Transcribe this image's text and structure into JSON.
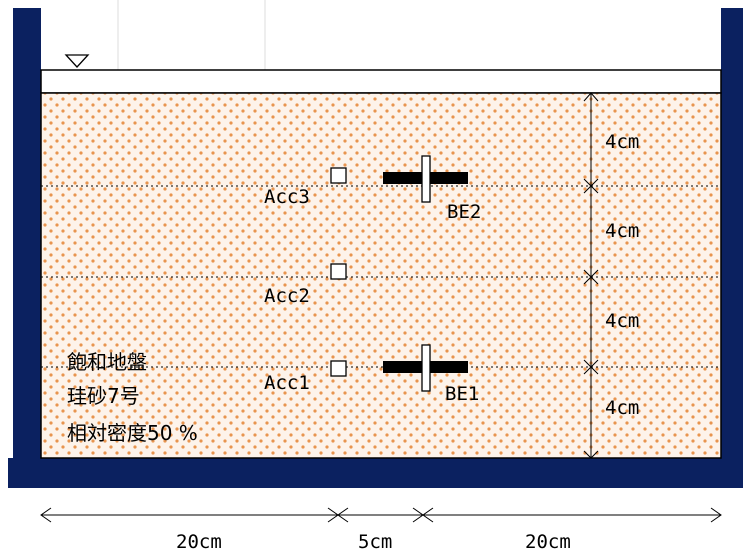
{
  "colors": {
    "container": "#0b2160",
    "sand_bg": "#fdf3ea",
    "sand_dot": "#e8954f",
    "water_line": "#000000",
    "gridline": "#cccccc"
  },
  "water_level_icon": "inverted-triangle-water-level-icon",
  "soil_description": {
    "line1": "飽和地盤",
    "line2": "珪砂7号",
    "line3": "相対密度50 %"
  },
  "accelerometers": [
    {
      "label": "Acc3"
    },
    {
      "label": "Acc2"
    },
    {
      "label": "Acc1"
    }
  ],
  "bender_elements": [
    {
      "label": "BE2"
    },
    {
      "label": "BE1"
    }
  ],
  "vertical_dimensions": [
    "4cm",
    "4cm",
    "4cm",
    "4cm"
  ],
  "horizontal_dimensions": [
    "20cm",
    "5cm",
    "20cm"
  ]
}
